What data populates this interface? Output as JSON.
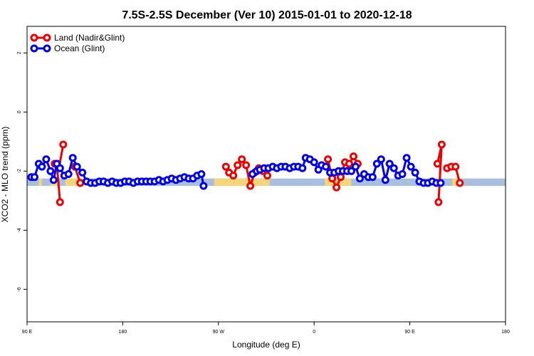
{
  "chart_data": {
    "type": "line",
    "title": "7.5S-2.5S December (Ver 10)   2015-01-01 to 2020-12-18",
    "xlabel": "Longitude (deg E)",
    "ylabel": "XCO2 - MLO trend (ppm)",
    "xlim": [
      90,
      540
    ],
    "ylim": [
      -7.1,
      2.9
    ],
    "x_ticks": [
      {
        "value": 90,
        "label": "90 E"
      },
      {
        "value": 180,
        "label": "180"
      },
      {
        "value": 270,
        "label": "90 W"
      },
      {
        "value": 360,
        "label": "0"
      },
      {
        "value": 450,
        "label": "90 E"
      },
      {
        "value": 540,
        "label": "180"
      }
    ],
    "y_ticks": [
      {
        "value": 2,
        "label": "2"
      },
      {
        "value": 0,
        "label": "0"
      },
      {
        "value": -2,
        "label": "-2"
      },
      {
        "value": -4,
        "label": "-4"
      },
      {
        "value": -6,
        "label": "-6"
      }
    ],
    "legend_position": "top-left",
    "surface_band": {
      "y_range": [
        -2.5,
        -2.25
      ],
      "land_color": "#f5d57a",
      "ocean_color": "#a8bfe0"
    },
    "series": [
      {
        "name": "Land (Nadir&Glint)",
        "color": "#ee0000",
        "segments": [
          [
            [
              116,
              -1.75
            ],
            [
              120,
              -1.9
            ],
            [
              124,
              -1.1
            ]
          ],
          [
            [
              118,
              -1.75
            ],
            [
              121,
              -3.05
            ]
          ],
          [
            [
              135,
              -1.85
            ],
            [
              140,
              -2.4
            ]
          ],
          [
            [
              277,
              -1.85
            ],
            [
              280,
              -2.05
            ],
            [
              284,
              -2.15
            ],
            [
              288,
              -1.8
            ],
            [
              292,
              -1.6
            ],
            [
              296,
              -1.8
            ],
            [
              300,
              -2.5
            ],
            [
              304,
              -2.05
            ],
            [
              308,
              -1.9
            ],
            [
              312,
              -2.0
            ],
            [
              316,
              -2.15
            ]
          ],
          [
            [
              373,
              -1.6
            ],
            [
              377,
              -2.25
            ],
            [
              381,
              -2.55
            ],
            [
              385,
              -2.2
            ],
            [
              389,
              -1.7
            ],
            [
              393,
              -1.75
            ],
            [
              397,
              -1.5
            ],
            [
              401,
              -1.75
            ]
          ],
          [
            [
              476,
              -1.75
            ],
            [
              480,
              -1.1
            ],
            [
              477,
              -3.05
            ]
          ],
          [
            [
              485,
              -1.9
            ],
            [
              489,
              -1.85
            ]
          ],
          [
            [
              493,
              -1.85
            ],
            [
              497,
              -2.4
            ]
          ]
        ]
      },
      {
        "name": "Ocean (Glint)",
        "color": "#0000ee",
        "segments": [
          [
            [
              94,
              -2.2
            ],
            [
              97,
              -2.2
            ],
            [
              101,
              -1.75
            ],
            [
              104,
              -1.85
            ],
            [
              108,
              -1.6
            ],
            [
              112,
              -2.0
            ],
            [
              115,
              -2.3
            ],
            [
              118,
              -1.75
            ],
            [
              121,
              -1.9
            ],
            [
              125,
              -2.15
            ],
            [
              129,
              -2.1
            ],
            [
              133,
              -1.55
            ],
            [
              137,
              -1.85
            ],
            [
              142,
              -2.05
            ],
            [
              146,
              -2.35
            ],
            [
              150,
              -2.4
            ],
            [
              154,
              -2.4
            ],
            [
              158,
              -2.35
            ],
            [
              162,
              -2.35
            ],
            [
              166,
              -2.4
            ],
            [
              170,
              -2.35
            ],
            [
              174,
              -2.4
            ],
            [
              178,
              -2.4
            ],
            [
              182,
              -2.35
            ],
            [
              186,
              -2.35
            ],
            [
              190,
              -2.4
            ],
            [
              194,
              -2.35
            ],
            [
              198,
              -2.35
            ],
            [
              202,
              -2.35
            ],
            [
              206,
              -2.35
            ],
            [
              210,
              -2.35
            ],
            [
              214,
              -2.3
            ],
            [
              218,
              -2.35
            ],
            [
              222,
              -2.3
            ],
            [
              226,
              -2.25
            ],
            [
              230,
              -2.3
            ],
            [
              234,
              -2.25
            ],
            [
              238,
              -2.2
            ],
            [
              242,
              -2.25
            ],
            [
              246,
              -2.25
            ],
            [
              250,
              -2.15
            ],
            [
              254,
              -2.1
            ],
            [
              256,
              -2.5
            ]
          ],
          [
            [
              302,
              -2.1
            ],
            [
              306,
              -2.0
            ],
            [
              309,
              -1.95
            ],
            [
              313,
              -1.9
            ],
            [
              317,
              -1.9
            ],
            [
              321,
              -1.85
            ],
            [
              325,
              -1.9
            ],
            [
              329,
              -1.85
            ],
            [
              333,
              -1.85
            ],
            [
              337,
              -1.9
            ],
            [
              341,
              -1.85
            ],
            [
              345,
              -1.85
            ],
            [
              349,
              -1.9
            ],
            [
              352,
              -1.55
            ],
            [
              356,
              -1.6
            ],
            [
              360,
              -1.7
            ],
            [
              364,
              -1.95
            ],
            [
              367,
              -1.8
            ],
            [
              371,
              -1.85
            ],
            [
              375,
              -2.05
            ],
            [
              379,
              -2.05
            ],
            [
              383,
              -2.0
            ],
            [
              387,
              -2.0
            ],
            [
              391,
              -2.0
            ],
            [
              395,
              -2.0
            ],
            [
              399,
              -1.85
            ],
            [
              403,
              -2.25
            ],
            [
              407,
              -2.1
            ],
            [
              411,
              -2.2
            ],
            [
              415,
              -2.2
            ],
            [
              419,
              -1.75
            ],
            [
              423,
              -1.6
            ],
            [
              427,
              -2.3
            ],
            [
              431,
              -1.75
            ],
            [
              435,
              -1.9
            ],
            [
              439,
              -2.15
            ],
            [
              443,
              -2.1
            ],
            [
              447,
              -1.55
            ],
            [
              451,
              -1.85
            ],
            [
              455,
              -2.05
            ],
            [
              459,
              -2.35
            ],
            [
              463,
              -2.4
            ],
            [
              467,
              -2.4
            ],
            [
              471,
              -2.35
            ],
            [
              475,
              -2.4
            ],
            [
              479,
              -2.4
            ]
          ]
        ]
      }
    ]
  }
}
